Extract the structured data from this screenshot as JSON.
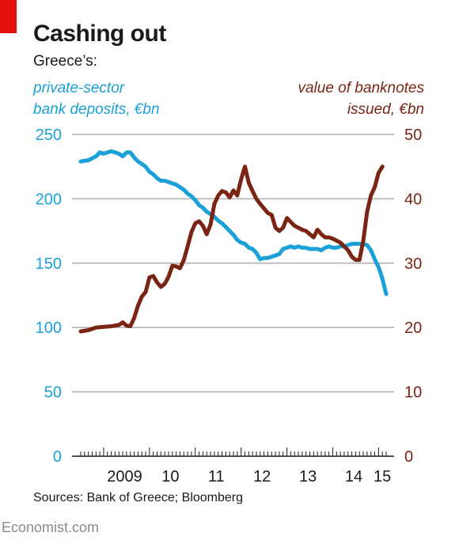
{
  "header": {
    "title": "Cashing out",
    "subtitle": "Greece’s:",
    "left_axis_label": "private-sector\nbank deposits, €bn",
    "right_axis_label": "value of banknotes\nissued, €bn"
  },
  "footer": {
    "source": "Sources: Bank of Greece; Bloomberg",
    "brand": "Economist.com"
  },
  "colors": {
    "deposits": "#1ba1d8",
    "banknotes": "#7a2413",
    "grid": "#b3b3b3",
    "text": "#1a1a1a"
  },
  "chart_data": {
    "type": "line",
    "title": "Cashing out",
    "x_tick_labels": [
      "2009",
      "10",
      "11",
      "12",
      "13",
      "14",
      "15"
    ],
    "xlim": [
      "2008-07",
      "2015-03"
    ],
    "y_left": {
      "ticks": [
        "0",
        "50",
        "100",
        "150",
        "200",
        "250"
      ],
      "ylim": [
        0,
        250
      ]
    },
    "y_right": {
      "ticks": [
        "0",
        "10",
        "20",
        "30",
        "40",
        "50"
      ],
      "ylim": [
        0,
        50
      ]
    },
    "grid": true,
    "series": [
      {
        "name": "private-sector bank deposits, €bn",
        "axis": "left",
        "color": "#1ba1d8",
        "points": [
          [
            "2008-07",
            229
          ],
          [
            "2008-09",
            230
          ],
          [
            "2008-11",
            233
          ],
          [
            "2008-12",
            236
          ],
          [
            "2009-01",
            235
          ],
          [
            "2009-03",
            237
          ],
          [
            "2009-05",
            235
          ],
          [
            "2009-06",
            233
          ],
          [
            "2009-07",
            236
          ],
          [
            "2009-08",
            236
          ],
          [
            "2009-09",
            232
          ],
          [
            "2009-10",
            229
          ],
          [
            "2009-11",
            227
          ],
          [
            "2009-12",
            225
          ],
          [
            "2010-01",
            221
          ],
          [
            "2010-02",
            219
          ],
          [
            "2010-03",
            216
          ],
          [
            "2010-04",
            214
          ],
          [
            "2010-05",
            214
          ],
          [
            "2010-06",
            213
          ],
          [
            "2010-07",
            212
          ],
          [
            "2010-08",
            211
          ],
          [
            "2010-09",
            209
          ],
          [
            "2010-10",
            207
          ],
          [
            "2010-11",
            204
          ],
          [
            "2010-12",
            202
          ],
          [
            "2011-01",
            199
          ],
          [
            "2011-02",
            195
          ],
          [
            "2011-03",
            193
          ],
          [
            "2011-04",
            190
          ],
          [
            "2011-05",
            188
          ],
          [
            "2011-06",
            186
          ],
          [
            "2011-07",
            183
          ],
          [
            "2011-08",
            181
          ],
          [
            "2011-09",
            178
          ],
          [
            "2011-10",
            175
          ],
          [
            "2011-11",
            172
          ],
          [
            "2011-12",
            168
          ],
          [
            "2012-01",
            166
          ],
          [
            "2012-02",
            165
          ],
          [
            "2012-03",
            162
          ],
          [
            "2012-04",
            161
          ],
          [
            "2012-05",
            158
          ],
          [
            "2012-06",
            153
          ],
          [
            "2012-07",
            154
          ],
          [
            "2012-08",
            154
          ],
          [
            "2012-09",
            155
          ],
          [
            "2012-10",
            156
          ],
          [
            "2012-11",
            157
          ],
          [
            "2012-12",
            161
          ],
          [
            "2013-01",
            162
          ],
          [
            "2013-02",
            163
          ],
          [
            "2013-03",
            162
          ],
          [
            "2013-04",
            163
          ],
          [
            "2013-05",
            162
          ],
          [
            "2013-06",
            162
          ],
          [
            "2013-07",
            161
          ],
          [
            "2013-08",
            161
          ],
          [
            "2013-09",
            161
          ],
          [
            "2013-10",
            160
          ],
          [
            "2013-11",
            162
          ],
          [
            "2013-12",
            163
          ],
          [
            "2014-01",
            162
          ],
          [
            "2014-02",
            162
          ],
          [
            "2014-03",
            163
          ],
          [
            "2014-04",
            163
          ],
          [
            "2014-05",
            164
          ],
          [
            "2014-06",
            165
          ],
          [
            "2014-07",
            165
          ],
          [
            "2014-08",
            165
          ],
          [
            "2014-09",
            165
          ],
          [
            "2014-10",
            164
          ],
          [
            "2014-11",
            160
          ],
          [
            "2014-12",
            153
          ],
          [
            "2015-01",
            147
          ],
          [
            "2015-02",
            138
          ],
          [
            "2015-03",
            126
          ]
        ]
      },
      {
        "name": "value of banknotes issued, €bn",
        "axis": "right",
        "color": "#7a2413",
        "points": [
          [
            "2008-07",
            19.4
          ],
          [
            "2008-09",
            19.6
          ],
          [
            "2008-11",
            20.0
          ],
          [
            "2009-01",
            20.1
          ],
          [
            "2009-03",
            20.2
          ],
          [
            "2009-05",
            20.4
          ],
          [
            "2009-06",
            20.8
          ],
          [
            "2009-07",
            20.3
          ],
          [
            "2009-08",
            20.2
          ],
          [
            "2009-09",
            21.5
          ],
          [
            "2009-10",
            23.4
          ],
          [
            "2009-11",
            24.8
          ],
          [
            "2009-12",
            25.5
          ],
          [
            "2010-01",
            27.8
          ],
          [
            "2010-02",
            28.0
          ],
          [
            "2010-03",
            27.0
          ],
          [
            "2010-04",
            26.3
          ],
          [
            "2010-05",
            26.8
          ],
          [
            "2010-06",
            27.9
          ],
          [
            "2010-07",
            29.6
          ],
          [
            "2010-08",
            29.5
          ],
          [
            "2010-09",
            29.2
          ],
          [
            "2010-10",
            30.5
          ],
          [
            "2010-11",
            32.6
          ],
          [
            "2010-12",
            34.8
          ],
          [
            "2011-01",
            36.2
          ],
          [
            "2011-02",
            36.5
          ],
          [
            "2011-03",
            35.8
          ],
          [
            "2011-04",
            34.5
          ],
          [
            "2011-05",
            36.0
          ],
          [
            "2011-06",
            39.2
          ],
          [
            "2011-07",
            40.5
          ],
          [
            "2011-08",
            41.2
          ],
          [
            "2011-09",
            41.0
          ],
          [
            "2011-10",
            40.2
          ],
          [
            "2011-11",
            41.3
          ],
          [
            "2011-12",
            40.5
          ],
          [
            "2012-01",
            43.0
          ],
          [
            "2012-02",
            45.0
          ],
          [
            "2012-03",
            42.5
          ],
          [
            "2012-04",
            41.2
          ],
          [
            "2012-05",
            40.0
          ],
          [
            "2012-06",
            39.2
          ],
          [
            "2012-07",
            38.5
          ],
          [
            "2012-08",
            37.8
          ],
          [
            "2012-09",
            37.5
          ],
          [
            "2012-10",
            35.5
          ],
          [
            "2012-11",
            35.0
          ],
          [
            "2012-12",
            35.5
          ],
          [
            "2013-01",
            37.0
          ],
          [
            "2013-02",
            36.4
          ],
          [
            "2013-03",
            35.8
          ],
          [
            "2013-04",
            35.5
          ],
          [
            "2013-05",
            35.2
          ],
          [
            "2013-06",
            35.0
          ],
          [
            "2013-07",
            34.5
          ],
          [
            "2013-08",
            34.0
          ],
          [
            "2013-09",
            35.2
          ],
          [
            "2013-10",
            34.5
          ],
          [
            "2013-11",
            34.0
          ],
          [
            "2013-12",
            34.0
          ],
          [
            "2014-01",
            33.8
          ],
          [
            "2014-02",
            33.5
          ],
          [
            "2014-03",
            33.2
          ],
          [
            "2014-04",
            32.6
          ],
          [
            "2014-05",
            32.0
          ],
          [
            "2014-06",
            31.0
          ],
          [
            "2014-07",
            30.5
          ],
          [
            "2014-08",
            30.5
          ],
          [
            "2014-09",
            33.5
          ],
          [
            "2014-10",
            38.0
          ],
          [
            "2014-11",
            40.5
          ],
          [
            "2014-12",
            41.8
          ],
          [
            "2015-01",
            44.0
          ],
          [
            "2015-02",
            45.0
          ]
        ]
      }
    ]
  }
}
